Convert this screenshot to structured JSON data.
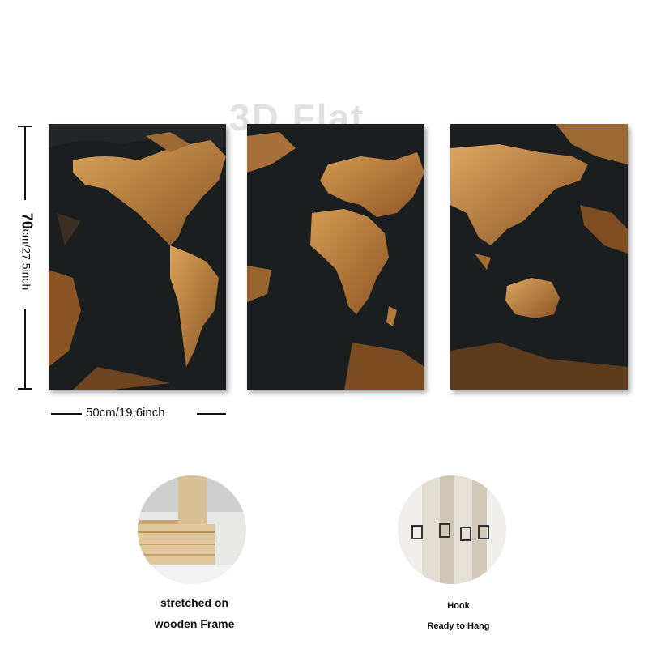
{
  "watermark": "3D Flat",
  "dimensions": {
    "height_value": "70",
    "height_unit": "cm/27.5inch",
    "width_label": "50cm/19.6inch"
  },
  "features": [
    {
      "icon": "wooden-frame-photo",
      "line1": "stretched on",
      "line2": "wooden Frame"
    },
    {
      "icon": "hook-photo",
      "line1": "Hook",
      "line2": "Ready to Hang"
    }
  ],
  "colors": {
    "ocean": "#1b1e1f",
    "land_gold": "#c08a45",
    "land_dark_gold": "#8a5424",
    "wood": "#d9bf94"
  }
}
